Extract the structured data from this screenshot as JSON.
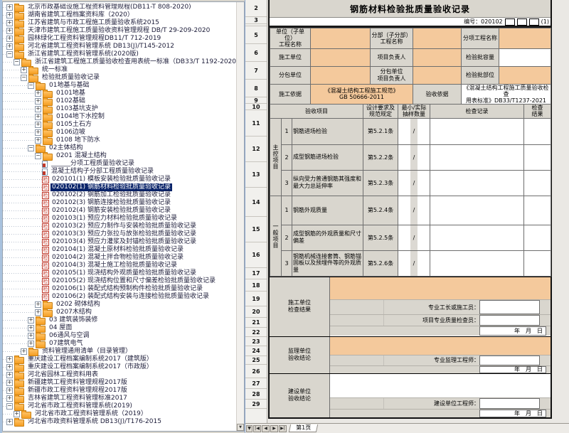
{
  "tree": {
    "check_glyph": "检",
    "items": [
      {
        "label": "北京市政基础设施工程资料管理规程(DB11-T 808-2020)",
        "level": 0,
        "icon": "folder",
        "expand": "+",
        "selected": false
      },
      {
        "label": "湖南省建筑工程档案资料库（2020）",
        "level": 0,
        "icon": "folder",
        "expand": "+",
        "selected": false
      },
      {
        "label": "江苏省建筑与市政工程施工质量验收系统2015",
        "level": 0,
        "icon": "folder",
        "expand": "+",
        "selected": false
      },
      {
        "label": "天津市建筑工程施工质量验收资料管理规程 DB/T 29-209-2020",
        "level": 0,
        "icon": "folder",
        "expand": "+",
        "selected": false
      },
      {
        "label": "园林绿化工程资料管理规程DB11/T 712-2019",
        "level": 0,
        "icon": "folder",
        "expand": "+",
        "selected": false
      },
      {
        "label": "河北省建筑工程资料管理系统 DB13(J)/T145-2012",
        "level": 0,
        "icon": "folder",
        "expand": "+",
        "selected": false
      },
      {
        "label": "浙江省建筑工程资料管理系统(2020版)",
        "level": 0,
        "icon": "folder",
        "expand": "-",
        "selected": false
      },
      {
        "label": "浙江省建筑工程施工质量验收检查用表统一标准（DB33/T 1192-2020）",
        "level": 1,
        "icon": "folder",
        "expand": "-",
        "selected": false
      },
      {
        "label": "统一标准",
        "level": 2,
        "icon": "folder",
        "expand": "+",
        "selected": false
      },
      {
        "label": "检验批质量验收记录",
        "level": 2,
        "icon": "folder",
        "expand": "-",
        "selected": false
      },
      {
        "label": "01地基与基础",
        "level": 3,
        "icon": "folder",
        "expand": "-",
        "selected": false
      },
      {
        "label": "0101地基",
        "level": 4,
        "icon": "folder",
        "expand": "+",
        "selected": false
      },
      {
        "label": "0102基础",
        "level": 4,
        "icon": "folder",
        "expand": "+",
        "selected": false
      },
      {
        "label": "0103基坑支护",
        "level": 4,
        "icon": "folder",
        "expand": "+",
        "selected": false
      },
      {
        "label": "0104地下水控制",
        "level": 4,
        "icon": "folder",
        "expand": "+",
        "selected": false
      },
      {
        "label": "0105土石方",
        "level": 4,
        "icon": "folder",
        "expand": "+",
        "selected": false
      },
      {
        "label": "0106边坡",
        "level": 4,
        "icon": "folder",
        "expand": "+",
        "selected": false
      },
      {
        "label": "0108 地下防水",
        "level": 4,
        "icon": "folder",
        "expand": "+",
        "selected": false
      },
      {
        "label": "02主体结构",
        "level": 3,
        "icon": "folder",
        "expand": "-",
        "selected": false
      },
      {
        "label": "0201 混凝土结构",
        "level": 4,
        "icon": "folder",
        "expand": "-",
        "selected": false
      },
      {
        "label": "______分项工程质量验收记录",
        "level": 5,
        "icon": "doc",
        "expand": "",
        "selected": false
      },
      {
        "label": "混凝土结构子分部工程质量验收记录",
        "level": 5,
        "icon": "doc",
        "expand": "",
        "selected": false
      },
      {
        "label": "020101(1) 模板安装检验批质量验收记录",
        "level": 5,
        "icon": "check",
        "expand": "",
        "selected": false
      },
      {
        "label": "020102(1) 钢筋材料检验批质量验收记录",
        "level": 5,
        "icon": "check",
        "expand": "",
        "selected": true
      },
      {
        "label": "020102(2) 钢筋加工检验批质量验收记录",
        "level": 5,
        "icon": "check",
        "expand": "",
        "selected": false
      },
      {
        "label": "020102(3) 钢筋连接检验批质量验收记录",
        "level": 5,
        "icon": "check",
        "expand": "",
        "selected": false
      },
      {
        "label": "020102(4) 钢筋安装检验批质量验收记录",
        "level": 5,
        "icon": "check",
        "expand": "",
        "selected": false
      },
      {
        "label": "020103(1) 预应力材料检验批质量验收记录",
        "level": 5,
        "icon": "check",
        "expand": "",
        "selected": false
      },
      {
        "label": "020103(2) 预应力制作与安装检验批质量验收记录",
        "level": 5,
        "icon": "check",
        "expand": "",
        "selected": false
      },
      {
        "label": "020103(3) 预应力张拉与放张检验批质量验收记录",
        "level": 5,
        "icon": "check",
        "expand": "",
        "selected": false
      },
      {
        "label": "020103(4) 预应力灌浆及封锚检验批质量验收记录",
        "level": 5,
        "icon": "check",
        "expand": "",
        "selected": false
      },
      {
        "label": "020104(1) 混凝土原材料检验批质量验收记录",
        "level": 5,
        "icon": "check",
        "expand": "",
        "selected": false
      },
      {
        "label": "020104(2) 混凝土拌合物检验批质量验收记录",
        "level": 5,
        "icon": "check",
        "expand": "",
        "selected": false
      },
      {
        "label": "020104(3) 混凝土施工检验批质量验收记录",
        "level": 5,
        "icon": "check",
        "expand": "",
        "selected": false
      },
      {
        "label": "020105(1) 现浇结构外观质量检验批质量验收记录",
        "level": 5,
        "icon": "check",
        "expand": "",
        "selected": false
      },
      {
        "label": "020105(2) 现浇结构位置和尺寸偏差检验批质量验收记录",
        "level": 5,
        "icon": "check",
        "expand": "",
        "selected": false
      },
      {
        "label": "020106(1) 装配式结构预制构件检验批质量验收记录",
        "level": 5,
        "icon": "check",
        "expand": "",
        "selected": false
      },
      {
        "label": "020106(2) 装配式结构安装与连接检验批质量验收记录",
        "level": 5,
        "icon": "check",
        "expand": "",
        "selected": false
      },
      {
        "label": "0202 砌体结构",
        "level": 4,
        "icon": "folder",
        "expand": "+",
        "selected": false
      },
      {
        "label": "0207木结构",
        "level": 4,
        "icon": "folder",
        "expand": "+",
        "selected": false
      },
      {
        "label": "03 建筑装饰装修",
        "level": 3,
        "icon": "folder",
        "expand": "+",
        "selected": false
      },
      {
        "label": "04 屋面",
        "level": 3,
        "icon": "folder",
        "expand": "+",
        "selected": false
      },
      {
        "label": "06通风与空调",
        "level": 3,
        "icon": "folder",
        "expand": "+",
        "selected": false
      },
      {
        "label": "07建筑电气",
        "level": 3,
        "icon": "folder",
        "expand": "+",
        "selected": false
      },
      {
        "label": "资料管理通用清单（目录管理）",
        "level": 2,
        "icon": "folder",
        "expand": "+",
        "selected": false
      },
      {
        "label": "重庆建设工程档案编制系统2017（建筑版）",
        "level": 0,
        "icon": "folder",
        "expand": "+",
        "selected": false
      },
      {
        "label": "重庆建设工程档案编制系统2017（市政版）",
        "level": 0,
        "icon": "folder",
        "expand": "+",
        "selected": false
      },
      {
        "label": "河北省园林工程资料用表",
        "level": 0,
        "icon": "folder",
        "expand": "+",
        "selected": false
      },
      {
        "label": "新疆建筑工程资料管理规程2017版",
        "level": 0,
        "icon": "folder",
        "expand": "+",
        "selected": false
      },
      {
        "label": "新疆市政工程资料管理规程2017版",
        "level": 0,
        "icon": "folder",
        "expand": "+",
        "selected": false
      },
      {
        "label": "吉林省建筑工程资料管理标准2017",
        "level": 0,
        "icon": "folder",
        "expand": "+",
        "selected": false
      },
      {
        "label": "河北省市政工程资料管理系统(2019)",
        "level": 0,
        "icon": "folder",
        "expand": "-",
        "selected": false
      },
      {
        "label": "河北省市政工程资料管理系统（2019）",
        "level": 1,
        "icon": "folder",
        "expand": "+",
        "selected": false
      },
      {
        "label": "河北省市政资料管理系统 DB13(J)/T176-2015",
        "level": 0,
        "icon": "folder",
        "expand": "+",
        "selected": false
      }
    ]
  },
  "form": {
    "title": "钢筋材料检验批质量验收记录",
    "serial_prefix": "编号：020102",
    "serial_suffix": "(1)",
    "info": {
      "unit_label": "单位（子单位）\n工程名称",
      "division_label": "分部（子分部）\n工程名称",
      "subitem_label": "分项工程名称",
      "contractor_label": "施工单位",
      "pm_label": "项目负责人",
      "capacity_label": "检验批容量",
      "sub_label": "分包单位",
      "sub_pm_label": "分包单位\n项目负责人",
      "location_label": "检验批部位",
      "basis_label": "施工依据",
      "basis_value": "《混凝土结构工程施工规范》\nGB 50666-2011",
      "accept_label": "验收依据",
      "accept_value": "《混凝土结构工程施工质量验收检查\n用表标准》DB33/T1237-2021"
    },
    "header": {
      "c1": "验收项目",
      "c2": "设计要求及\n规范规定",
      "c3": "最小/实际\n抽样数量",
      "c4": "检查记录",
      "c5": "检查\n结果"
    },
    "checklist": [
      {
        "group": "主控项目",
        "seq": "1",
        "name": "钢筋进场检验",
        "spec": "第5.2.1条",
        "sampling": "/"
      },
      {
        "seq": "2",
        "name": "成型钢筋进场检验",
        "spec": "第5.2.2条",
        "sampling": "/"
      },
      {
        "seq": "3",
        "name": "纵向受力普通钢筋其强度和最大力总延伸率",
        "spec": "第5.2.3条",
        "sampling": "/"
      },
      {
        "group": "一般项目",
        "seq": "1",
        "name": "钢筋外观质量",
        "spec": "第5.2.4条",
        "sampling": "/"
      },
      {
        "seq": "2",
        "name": "成型钢筋的外观质量和尺寸偏差",
        "spec": "第5.2.5条",
        "sampling": "/"
      },
      {
        "seq": "3",
        "name": "钢筋机械连接套筒、钢筋锚固板以及预埋件等的外观质量",
        "spec": "第5.2.6条",
        "sampling": "/"
      }
    ],
    "signatures": {
      "builder": {
        "label": "施工单位\n检查结果",
        "line1": "专业工长或施工员：",
        "line2": "项目专业质量检查员：",
        "date": "年　月　日"
      },
      "supervisor": {
        "label": "监理单位\n验收结论",
        "line1": "专业监理工程师：",
        "date": "年　月　日"
      },
      "owner": {
        "label": "建设单位\n验收结论",
        "line1": "建设单位工程师：",
        "date": "年　月　日"
      }
    },
    "gutter": [
      "2",
      "3",
      "",
      "5",
      "6",
      "7",
      "8",
      "9",
      "10",
      "11",
      "12",
      "13",
      "14",
      "15",
      "16",
      "17",
      "18",
      "19",
      "20",
      "21",
      "22",
      "23",
      "24",
      "25",
      "26",
      "27",
      "28",
      "29"
    ],
    "tab": "第1页",
    "nav": {
      "first": "|◀",
      "prev": "◀",
      "next": "▶",
      "last": "▶|",
      "scroll_down": "▼"
    }
  },
  "colors": {
    "accent_orange": "#F4C99C",
    "selection": "#0A246A",
    "cell_gray": "#D9D6CE"
  }
}
